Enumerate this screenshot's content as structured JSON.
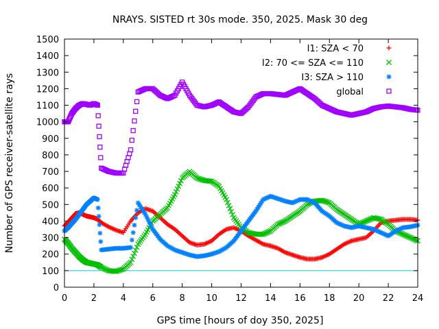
{
  "chart_data": {
    "type": "scatter",
    "title": "NRAYS. SISTED rt 30s mode. 350, 2025. Mask 30 deg",
    "xlabel": "GPS time [hours of doy 350, 2025]",
    "ylabel": "Number of GPS receiver-satellite rays",
    "xlim": [
      0,
      24
    ],
    "ylim": [
      0,
      1500
    ],
    "xticks": [
      "0",
      "2",
      "4",
      "6",
      "8",
      "10",
      "12",
      "14",
      "16",
      "18",
      "20",
      "22",
      "24"
    ],
    "yticks": [
      "0",
      "100",
      "200",
      "300",
      "400",
      "500",
      "600",
      "700",
      "800",
      "900",
      "1000",
      "1100",
      "1200",
      "1300",
      "1400",
      "1500"
    ],
    "reference_line": {
      "y": 100,
      "color": "#00c8c8"
    },
    "legend_position": "top-right",
    "series": [
      {
        "name": "I1: SZA < 70",
        "marker": "+",
        "color": "#ff0000",
        "x": [
          0,
          0.25,
          0.5,
          0.75,
          1,
          1.25,
          1.5,
          1.75,
          2,
          2.25,
          2.5,
          3,
          3.5,
          4,
          4.5,
          5,
          5.5,
          6,
          6.5,
          7,
          7.5,
          8,
          8.5,
          9,
          9.5,
          10,
          10.5,
          11,
          11.5,
          12,
          12.5,
          13,
          13.5,
          14,
          14.5,
          15,
          15.5,
          16,
          16.5,
          17,
          17.5,
          18,
          18.5,
          19,
          19.5,
          20,
          20.5,
          21,
          21.5,
          22,
          22.5,
          23,
          23.5,
          24
        ],
        "y": [
          370,
          395,
          420,
          445,
          450,
          440,
          430,
          425,
          420,
          410,
          390,
          365,
          345,
          330,
          400,
          450,
          475,
          460,
          420,
          380,
          350,
          310,
          270,
          255,
          260,
          280,
          320,
          350,
          360,
          340,
          310,
          285,
          260,
          250,
          235,
          210,
          195,
          180,
          170,
          170,
          180,
          200,
          230,
          260,
          280,
          290,
          300,
          340,
          390,
          400,
          405,
          410,
          410,
          405
        ]
      },
      {
        "name": "I2: 70 <= SZA <= 110",
        "marker": "x",
        "color": "#00c000",
        "x": [
          0,
          0.25,
          0.5,
          0.75,
          1,
          1.25,
          1.5,
          1.75,
          2,
          2.25,
          2.5,
          3,
          3.5,
          4,
          4.5,
          5,
          5.5,
          6,
          6.5,
          7,
          7.5,
          8,
          8.5,
          9,
          9.5,
          10,
          10.5,
          11,
          11.5,
          12,
          12.5,
          13,
          13.5,
          14,
          14.5,
          15,
          15.5,
          16,
          16.5,
          17,
          17.5,
          18,
          18.5,
          19,
          19.5,
          20,
          20.5,
          21,
          21.5,
          22,
          22.5,
          23,
          23.5,
          24
        ],
        "y": [
          290,
          265,
          235,
          210,
          185,
          165,
          150,
          145,
          140,
          135,
          120,
          100,
          95,
          110,
          150,
          260,
          320,
          400,
          440,
          480,
          560,
          660,
          700,
          660,
          645,
          640,
          610,
          530,
          420,
          360,
          330,
          320,
          320,
          340,
          380,
          400,
          430,
          460,
          500,
          520,
          525,
          510,
          470,
          440,
          410,
          380,
          400,
          420,
          410,
          380,
          340,
          320,
          300,
          280
        ]
      },
      {
        "name": "I3: SZA > 110",
        "marker": "*",
        "color": "#0080ff",
        "x": [
          0,
          0.25,
          0.5,
          0.75,
          1,
          1.25,
          1.5,
          1.75,
          2,
          2.25,
          2.5,
          3,
          3.5,
          4,
          4.5,
          5,
          5.5,
          6,
          6.5,
          7,
          7.5,
          8,
          8.5,
          9,
          9.5,
          10,
          10.5,
          11,
          11.5,
          12,
          12.5,
          13,
          13.5,
          14,
          14.5,
          15,
          15.5,
          16,
          16.5,
          17,
          17.5,
          18,
          18.5,
          19,
          19.5,
          20,
          20.5,
          21,
          21.5,
          22,
          22.5,
          23,
          23.5,
          24
        ],
        "y": [
          340,
          360,
          385,
          410,
          440,
          470,
          500,
          520,
          540,
          530,
          225,
          230,
          235,
          235,
          240,
          510,
          440,
          350,
          290,
          250,
          225,
          210,
          195,
          185,
          190,
          200,
          215,
          240,
          280,
          340,
          400,
          460,
          530,
          550,
          535,
          520,
          510,
          530,
          530,
          510,
          460,
          430,
          390,
          370,
          360,
          370,
          360,
          350,
          330,
          310,
          340,
          360,
          365,
          375
        ]
      },
      {
        "name": "global",
        "marker": "square",
        "color": "#a000ff",
        "x": [
          0,
          0.25,
          0.5,
          0.75,
          1,
          1.25,
          1.5,
          1.75,
          2,
          2.25,
          2.5,
          3,
          3.5,
          4,
          4.5,
          5,
          5.5,
          6,
          6.5,
          7,
          7.5,
          8,
          8.5,
          9,
          9.5,
          10,
          10.5,
          11,
          11.5,
          12,
          12.5,
          13,
          13.5,
          14,
          14.5,
          15,
          15.5,
          16,
          16.5,
          17,
          17.5,
          18,
          18.5,
          19,
          19.5,
          20,
          20.5,
          21,
          21.5,
          22,
          22.5,
          23,
          23.5,
          24
        ],
        "y": [
          1000,
          1000,
          1050,
          1080,
          1100,
          1110,
          1105,
          1100,
          1110,
          1100,
          720,
          700,
          690,
          690,
          830,
          1180,
          1200,
          1200,
          1160,
          1140,
          1160,
          1240,
          1160,
          1100,
          1090,
          1100,
          1120,
          1090,
          1060,
          1050,
          1090,
          1150,
          1170,
          1170,
          1165,
          1160,
          1180,
          1200,
          1170,
          1140,
          1100,
          1080,
          1060,
          1050,
          1040,
          1050,
          1060,
          1080,
          1090,
          1095,
          1090,
          1085,
          1075,
          1070
        ]
      }
    ]
  }
}
